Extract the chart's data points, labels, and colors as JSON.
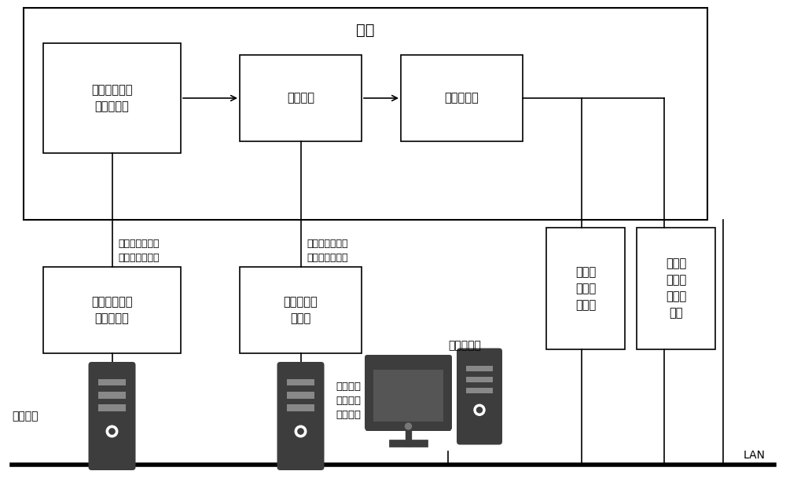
{
  "bg_color": "#ffffff",
  "satellite_label": "卫星",
  "lan_label": "LAN",
  "total_control_label": "总控设备",
  "main_computer_label": "主控计算机",
  "attitude_label": "姿态轨道\n动力学仿\n真计算机",
  "supply_annotation_line1": "供电信号，遥控",
  "supply_annotation_line2": "指令，遥测参数",
  "sensor_annotation_line1": "敏感器激励与执",
  "sensor_annotation_line2": "行机构动作采集",
  "box_supply_sat": "卫星供电与遥\n测遥控系统",
  "box_control_sat": "控制系统",
  "box_eprop_sat": "电推进系统",
  "box_gnd_supply": "供电与遥测遥\n控地面设备",
  "box_gnd_control": "控制系统地\n面设备",
  "box_ep_sim": "电推力\n器负载\n模拟器",
  "box_thrust_sim": "推力矢\n量调节\n机构模\n拟器",
  "icon_dark": "#3d3d3d",
  "icon_stripe": "#888888",
  "icon_screen": "#555555"
}
